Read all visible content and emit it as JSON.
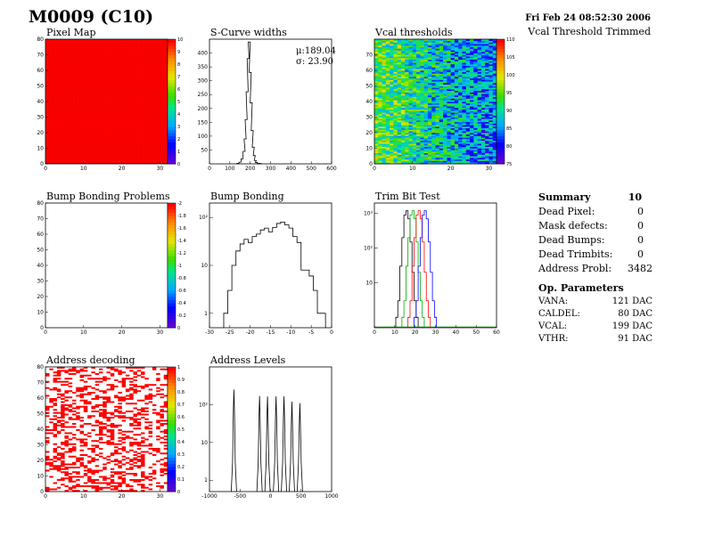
{
  "header": {
    "module_title": "M0009 (C10)",
    "date": "Fri Feb 24 08:52:30 2006",
    "subtitle": "Vcal Threshold Trimmed"
  },
  "panels": {
    "pixel_map": {
      "title": "Pixel Map"
    },
    "scurve": {
      "title": "S-Curve widths",
      "mu_label": "μ:189.04",
      "sigma_label": "σ: 23.90"
    },
    "vcal": {
      "title": "Vcal thresholds"
    },
    "bump_problems": {
      "title": "Bump Bonding Problems"
    },
    "bump_bonding": {
      "title": "Bump Bonding"
    },
    "trim_bit": {
      "title": "Trim Bit Test"
    },
    "address_decoding": {
      "title": "Address decoding"
    },
    "address_levels": {
      "title": "Address Levels"
    }
  },
  "summary": {
    "title": "Summary",
    "total": "10",
    "rows": [
      {
        "label": "Dead Pixel:",
        "value": "0"
      },
      {
        "label": "Mask defects:",
        "value": "0"
      },
      {
        "label": "Dead Bumps:",
        "value": "0"
      },
      {
        "label": "Dead Trimbits:",
        "value": "0"
      },
      {
        "label": "Address Probl:",
        "value": "3482"
      }
    ]
  },
  "op_parameters": {
    "title": "Op. Parameters",
    "rows": [
      {
        "label": "VANA:",
        "value": "121 DAC"
      },
      {
        "label": "CALDEL:",
        "value": "80 DAC"
      },
      {
        "label": "VCAL:",
        "value": "199 DAC"
      },
      {
        "label": "VTHR:",
        "value": "91 DAC"
      }
    ]
  },
  "colors": {
    "frame": "#000000",
    "hist_line": "#000000",
    "trim_red": "#ff0000",
    "trim_green": "#00aa00",
    "trim_blue": "#0000ff"
  },
  "chart_data": [
    {
      "id": "pixel_map",
      "type": "heatmap",
      "title": "Pixel Map",
      "xlim": [
        0,
        32
      ],
      "ylim": [
        0,
        80
      ],
      "zlim": [
        0,
        10
      ],
      "uniform_value": 10,
      "xticks": [
        "0",
        "10",
        "20",
        "30"
      ],
      "yticks": [
        "0",
        "10",
        "20",
        "30",
        "40",
        "50",
        "60",
        "70",
        "80"
      ],
      "zticks": [
        "0",
        "1",
        "2",
        "3",
        "4",
        "5",
        "6",
        "7",
        "8",
        "9",
        "10"
      ]
    },
    {
      "id": "scurve",
      "type": "bar",
      "title": "S-Curve widths",
      "xlim": [
        0,
        600
      ],
      "ylim": [
        0,
        450
      ],
      "xticks": [
        "0",
        "100",
        "200",
        "300",
        "400",
        "500",
        "600"
      ],
      "yticks": [
        "50",
        "100",
        "150",
        "200",
        "250",
        "300",
        "350",
        "400"
      ],
      "x": [
        140,
        150,
        160,
        170,
        175,
        180,
        185,
        190,
        195,
        200,
        205,
        210,
        215,
        220,
        225,
        230,
        240,
        250
      ],
      "values": [
        2,
        6,
        18,
        45,
        90,
        160,
        260,
        380,
        440,
        330,
        220,
        120,
        60,
        30,
        12,
        5,
        2,
        1
      ]
    },
    {
      "id": "vcal",
      "type": "heatmap",
      "title": "Vcal thresholds",
      "xlim": [
        0,
        32
      ],
      "ylim": [
        0,
        80
      ],
      "zlim": [
        73,
        115
      ],
      "xticks": [
        "0",
        "10",
        "20",
        "30"
      ],
      "yticks": [
        "0",
        "10",
        "20",
        "30",
        "40",
        "50",
        "60",
        "70"
      ],
      "zticks": [
        "75",
        "80",
        "85",
        "90",
        "95",
        "100",
        "105",
        "110"
      ]
    },
    {
      "id": "bump_problems",
      "type": "heatmap",
      "title": "Bump Bonding Problems",
      "xlim": [
        0,
        32
      ],
      "ylim": [
        0,
        80
      ],
      "zlim": [
        -2,
        0
      ],
      "xticks": [
        "0",
        "10",
        "20",
        "30"
      ],
      "yticks": [
        "0",
        "10",
        "20",
        "30",
        "40",
        "50",
        "60",
        "70",
        "80"
      ],
      "zticks": [
        "0",
        "-0.2",
        "-0.4",
        "-0.6",
        "-0.8",
        "-1",
        "-1.2",
        "-1.4",
        "-1.6",
        "-1.8",
        "-2"
      ]
    },
    {
      "id": "bump_bonding",
      "type": "bar",
      "title": "Bump Bonding",
      "yscale": "log",
      "xlim": [
        -30,
        0
      ],
      "ylim": [
        0.5,
        200
      ],
      "xticks": [
        "-30",
        "-25",
        "-20",
        "-15",
        "-10",
        "-5",
        "0"
      ],
      "yticks": [
        "1",
        "10",
        "10²"
      ],
      "x": [
        -26,
        -25,
        -24,
        -23,
        -22,
        -21,
        -20,
        -19,
        -18,
        -17,
        -16,
        -15,
        -14,
        -13,
        -12,
        -11,
        -10,
        -9,
        -8,
        -7,
        -6,
        -5,
        -4,
        -3,
        -2
      ],
      "values": [
        1,
        3,
        10,
        20,
        28,
        35,
        30,
        40,
        45,
        55,
        60,
        50,
        62,
        75,
        80,
        70,
        60,
        40,
        30,
        8,
        8,
        6,
        3,
        1,
        1
      ]
    },
    {
      "id": "trim_bit",
      "type": "line",
      "title": "Trim Bit Test",
      "yscale": "log",
      "xlim": [
        0,
        60
      ],
      "ylim": [
        0.5,
        2000
      ],
      "xticks": [
        "0",
        "10",
        "20",
        "30",
        "40",
        "50",
        "60"
      ],
      "yticks": [
        "10",
        "10²",
        "10³"
      ],
      "series": [
        {
          "x": [
            11,
            12,
            13,
            14,
            15,
            16,
            17,
            18,
            19,
            20,
            21
          ],
          "values": [
            1,
            3,
            30,
            200,
            900,
            1200,
            700,
            150,
            20,
            3,
            1
          ],
          "color": "#000000"
        },
        {
          "x": [
            14,
            15,
            16,
            17,
            18,
            19,
            20,
            21,
            22,
            23,
            24
          ],
          "values": [
            1,
            3,
            30,
            200,
            900,
            1200,
            700,
            150,
            20,
            3,
            1
          ],
          "color": "#00aa00"
        },
        {
          "x": [
            17,
            18,
            19,
            20,
            21,
            22,
            23,
            24,
            25,
            26,
            27
          ],
          "values": [
            1,
            3,
            30,
            200,
            900,
            1200,
            700,
            150,
            20,
            3,
            1
          ],
          "color": "#ff0000"
        },
        {
          "x": [
            20,
            21,
            22,
            23,
            24,
            25,
            26,
            27,
            28,
            29,
            30
          ],
          "values": [
            1,
            3,
            30,
            200,
            900,
            1200,
            700,
            150,
            20,
            3,
            1
          ],
          "color": "#0000ff"
        }
      ]
    },
    {
      "id": "address_decoding",
      "type": "heatmap",
      "title": "Address decoding",
      "xlim": [
        0,
        32
      ],
      "ylim": [
        0,
        80
      ],
      "zlim": [
        0,
        1
      ],
      "fill_fraction": 0.35,
      "xticks": [
        "0",
        "10",
        "20",
        "30"
      ],
      "yticks": [
        "0",
        "10",
        "20",
        "30",
        "40",
        "50",
        "60",
        "70",
        "80"
      ],
      "zticks": [
        "0",
        "0.1",
        "0.2",
        "0.3",
        "0.4",
        "0.5",
        "0.6",
        "0.7",
        "0.8",
        "0.9",
        "1"
      ]
    },
    {
      "id": "address_levels",
      "type": "line",
      "title": "Address Levels",
      "yscale": "log",
      "xlim": [
        -1000,
        1000
      ],
      "ylim": [
        0.5,
        1000
      ],
      "xticks": [
        "-1000",
        "-500",
        "0",
        "500",
        "1000"
      ],
      "yticks": [
        "1",
        "10",
        "10²"
      ],
      "peaks": [
        {
          "x": -600,
          "height": 250
        },
        {
          "x": -180,
          "height": 170
        },
        {
          "x": -50,
          "height": 165
        },
        {
          "x": 90,
          "height": 165
        },
        {
          "x": 220,
          "height": 165
        },
        {
          "x": 350,
          "height": 120
        },
        {
          "x": 480,
          "height": 110
        }
      ]
    }
  ]
}
